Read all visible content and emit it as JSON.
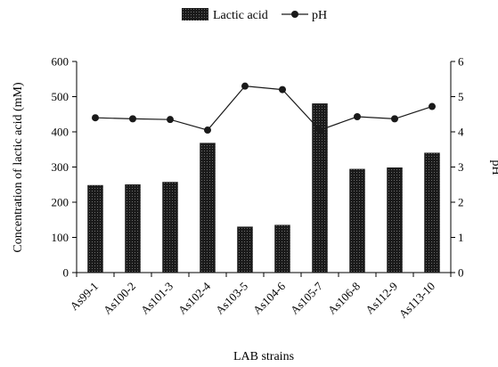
{
  "chart_data": {
    "type": "bar+line",
    "categories": [
      "As99-1",
      "As100-2",
      "As101-3",
      "As102-4",
      "As103-5",
      "As104-6",
      "As105-7",
      "As106-8",
      "As112-9",
      "As113-10"
    ],
    "series": [
      {
        "name": "Lactic acid",
        "type": "bar",
        "axis": "left",
        "color": "#1a1a1a",
        "values": [
          248,
          250,
          257,
          368,
          130,
          135,
          480,
          294,
          298,
          340
        ]
      },
      {
        "name": "pH",
        "type": "line",
        "axis": "right",
        "color": "#1a1a1a",
        "values": [
          4.4,
          4.37,
          4.35,
          4.05,
          5.3,
          5.2,
          4.05,
          4.43,
          4.37,
          4.72
        ]
      }
    ],
    "xlabel": "LAB strains",
    "ylabel": "Concentration of lactic acid (mM)",
    "y2label": "pH",
    "ylim": [
      0,
      600
    ],
    "y2lim": [
      0,
      6
    ],
    "yticks": [
      "0",
      "100",
      "200",
      "300",
      "400",
      "500",
      "600"
    ],
    "y2ticks": [
      "0",
      "1",
      "2",
      "3",
      "4",
      "5",
      "6"
    ],
    "legend_position": "top",
    "grid": false
  }
}
